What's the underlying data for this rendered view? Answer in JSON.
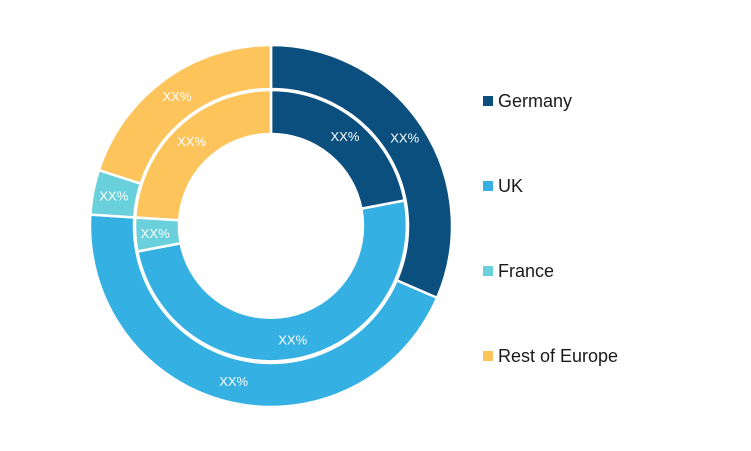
{
  "chart_data": {
    "type": "pie",
    "variant": "nested-donut",
    "categories": [
      "Germany",
      "UK",
      "France",
      "Rest of Europe"
    ],
    "colors": [
      "#0a4f7e",
      "#35b0e3",
      "#6ad0dc",
      "#fdc45c"
    ],
    "series": [
      {
        "ring": "outer",
        "values": [
          31.5,
          44.5,
          4.0,
          20.0
        ],
        "labels": [
          "XX%",
          "XX%",
          "XX%",
          "XX%"
        ]
      },
      {
        "ring": "inner",
        "values": [
          22.0,
          50.0,
          4.0,
          24.0
        ],
        "labels": [
          "XX%",
          "XX%",
          "XX%",
          "XX%"
        ]
      }
    ],
    "legend_position": "right",
    "legend": [
      "Germany",
      "UK",
      "France",
      "Rest of Europe"
    ],
    "outer_ring_segment_order": [
      "Germany",
      "UK",
      "France",
      "Rest of Europe"
    ],
    "segment_value_labels_shown": true
  }
}
